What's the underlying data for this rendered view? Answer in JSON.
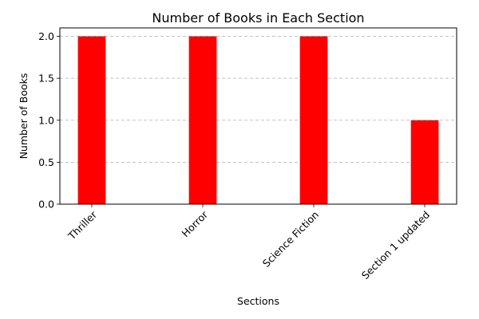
{
  "chart_data": {
    "type": "bar",
    "title": "Number of Books in Each Section",
    "xlabel": "Sections",
    "ylabel": "Number of Books",
    "categories": [
      "Thriller",
      "Horror",
      "Science Fiction",
      "Section 1 updated"
    ],
    "values": [
      2,
      2,
      2,
      1
    ],
    "ylim": [
      0,
      2.1
    ],
    "yticks": [
      "0.0",
      "0.5",
      "1.0",
      "1.5",
      "2.0"
    ],
    "bar_color": "#ff0000",
    "grid": "y-axis dashed",
    "xtick_rotation": 45
  }
}
